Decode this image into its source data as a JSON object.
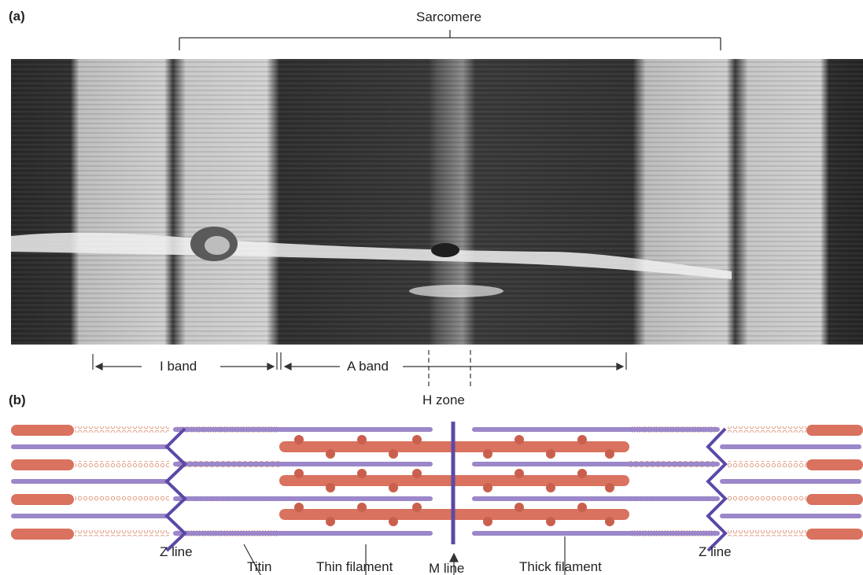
{
  "panel_a": {
    "label": "(a)",
    "sarcomere_label": "Sarcomere",
    "i_band_label": "I band",
    "a_band_label": "A band",
    "h_zone_label": "H zone"
  },
  "panel_b": {
    "label": "(b)",
    "z_line_left_label": "Z line",
    "z_line_right_label": "Z line",
    "titin_label": "Titin",
    "thin_filament_label": "Thin filament",
    "m_line_label": "M line",
    "thick_filament_label": "Thick filament"
  },
  "colors": {
    "thick_filament": "#d9725e",
    "thin_filament": "#9b87c9",
    "z_line": "#5b49a8",
    "titin": "#e19a80",
    "micrograph_dark": "#2b2b2b",
    "micrograph_light": "#d8d8d8"
  }
}
